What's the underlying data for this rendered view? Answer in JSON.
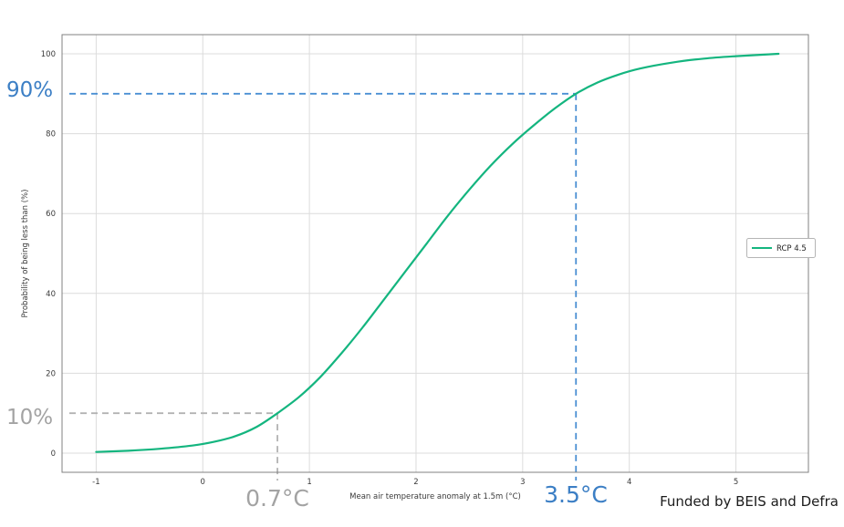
{
  "chart_data": {
    "type": "line",
    "title": "",
    "xlabel": "Mean air temperature anomaly at 1.5m (°C)",
    "ylabel": "Probability of being less than (%)",
    "xlim": [
      -1.32,
      5.68
    ],
    "ylim": [
      -4.8,
      104.8
    ],
    "xticks": [
      -1,
      0,
      1,
      2,
      3,
      4,
      5
    ],
    "yticks": [
      0,
      20,
      40,
      60,
      80,
      100
    ],
    "grid": true,
    "series": [
      {
        "name": "RCP 4.5",
        "color": "#14b57f",
        "x": [
          -1.0,
          -0.7,
          -0.4,
          -0.1,
          0.1,
          0.3,
          0.5,
          0.7,
          0.9,
          1.1,
          1.3,
          1.5,
          1.7,
          1.9,
          2.1,
          2.3,
          2.5,
          2.7,
          2.9,
          3.1,
          3.3,
          3.5,
          3.7,
          3.9,
          4.1,
          4.4,
          4.7,
          5.0,
          5.4
        ],
        "y": [
          0.3,
          0.6,
          1.1,
          1.9,
          2.8,
          4.2,
          6.5,
          10,
          14,
          19,
          25,
          31.5,
          38.5,
          45.5,
          52.5,
          59.5,
          66,
          72,
          77.3,
          82,
          86.3,
          90,
          92.8,
          94.8,
          96.3,
          97.8,
          98.8,
          99.4,
          100
        ]
      }
    ],
    "annotations": [
      {
        "x": 0.7,
        "y": 10,
        "x_label": "0.7°C",
        "y_label": "10%",
        "line_color": "#b3b3b3",
        "text_color": "#a3a3a3"
      },
      {
        "x": 3.5,
        "y": 90,
        "x_label": "3.5°C",
        "y_label": "90%",
        "line_color": "#4a8fd3",
        "text_color": "#3c7fc5"
      }
    ],
    "legend": {
      "label": "RCP 4.5",
      "position": "center right"
    },
    "footer": "Funded by BEIS and Defra"
  }
}
